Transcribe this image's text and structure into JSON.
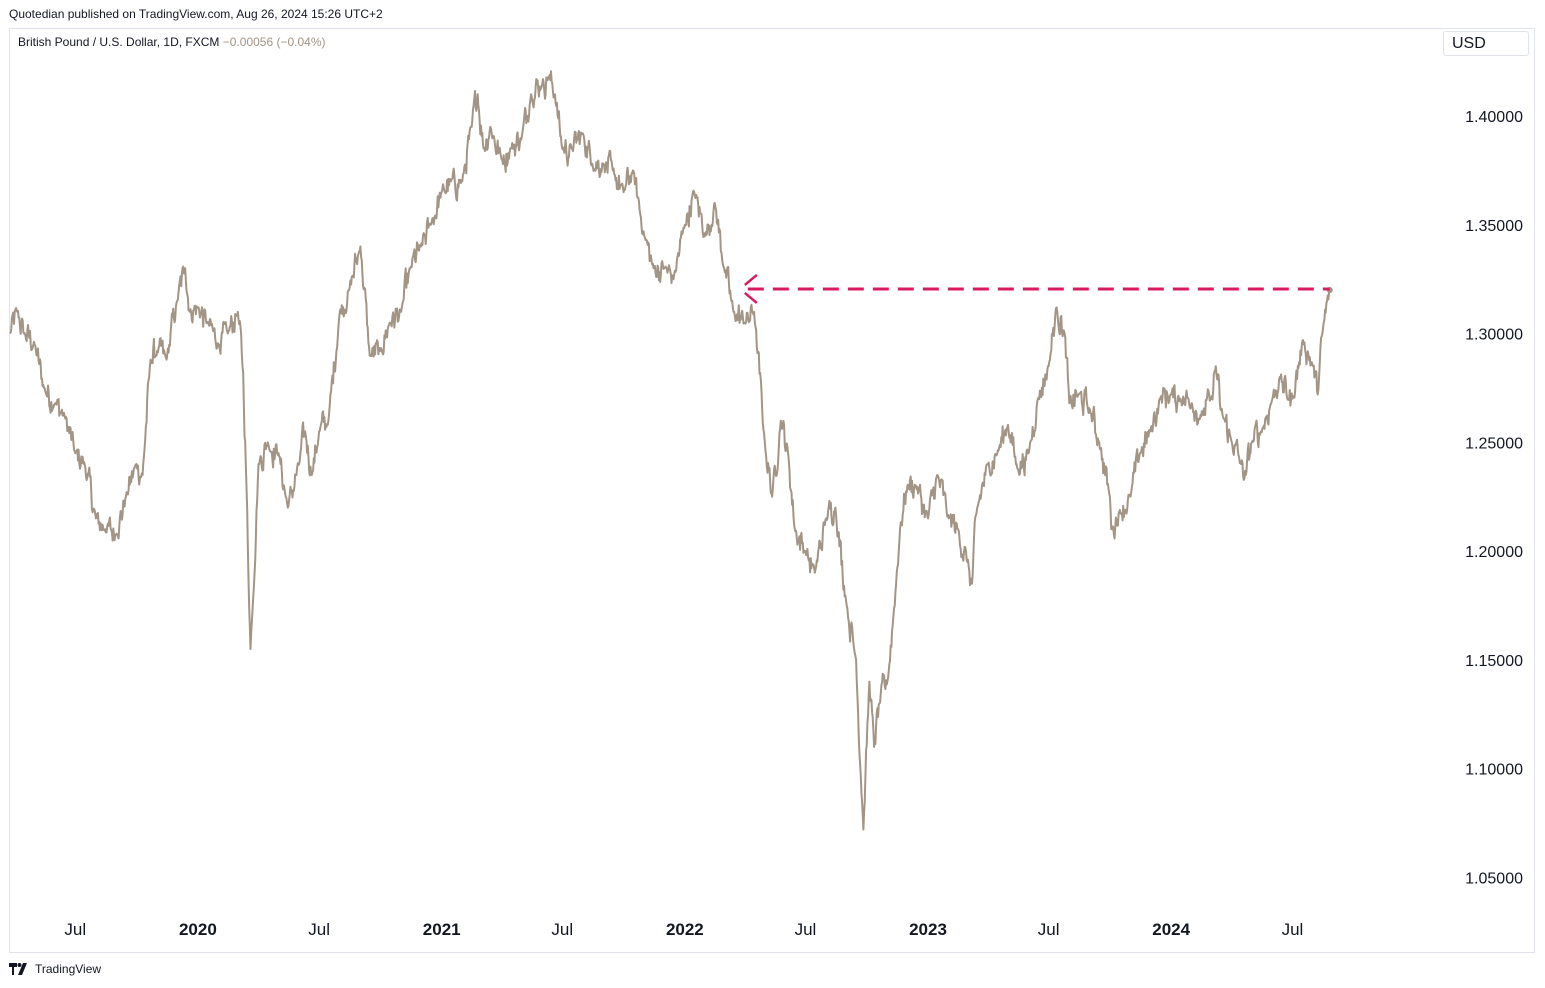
{
  "header": {
    "published": "Quotedian published on TradingView.com, Aug 26, 2024 15:26 UTC+2"
  },
  "symbol": {
    "name": "British Pound / U.S. Dollar, 1D, FXCM",
    "change": "−0.00056 (−0.04%)"
  },
  "currency": "USD",
  "footer": {
    "brand": "TradingView"
  },
  "colors": {
    "line": "#a39585",
    "marker": "#d81b60",
    "text": "#131722",
    "border": "#e0e3eb"
  },
  "chart_data": {
    "type": "line",
    "title": "",
    "xlabel": "",
    "ylabel": "",
    "ylim": [
      1.035,
      1.44
    ],
    "xlim": [
      "2019-03-25",
      "2025-01-31"
    ],
    "x_ticks": [
      {
        "label": "Jul",
        "date": "2019-07-01",
        "bold": false
      },
      {
        "label": "2020",
        "date": "2020-01-01",
        "bold": true
      },
      {
        "label": "Jul",
        "date": "2020-07-01",
        "bold": false
      },
      {
        "label": "2021",
        "date": "2021-01-01",
        "bold": true
      },
      {
        "label": "Jul",
        "date": "2021-07-01",
        "bold": false
      },
      {
        "label": "2022",
        "date": "2022-01-01",
        "bold": true
      },
      {
        "label": "Jul",
        "date": "2022-07-01",
        "bold": false
      },
      {
        "label": "2023",
        "date": "2023-01-01",
        "bold": true
      },
      {
        "label": "Jul",
        "date": "2023-07-01",
        "bold": false
      },
      {
        "label": "2024",
        "date": "2024-01-01",
        "bold": true
      },
      {
        "label": "Jul",
        "date": "2024-07-01",
        "bold": false
      }
    ],
    "y_ticks": [
      "1.05000",
      "1.10000",
      "1.15000",
      "1.20000",
      "1.25000",
      "1.30000",
      "1.35000",
      "1.40000"
    ],
    "series": [
      {
        "x": [
          "2019-03-25",
          "2019-04-05",
          "2019-04-15",
          "2019-05-01",
          "2019-05-15",
          "2019-06-01",
          "2019-06-15",
          "2019-07-01",
          "2019-07-15",
          "2019-08-01",
          "2019-08-15",
          "2019-09-01",
          "2019-09-15",
          "2019-10-01",
          "2019-10-10",
          "2019-10-22",
          "2019-11-01",
          "2019-11-15",
          "2019-12-01",
          "2019-12-13",
          "2019-12-20",
          "2020-01-01",
          "2020-01-15",
          "2020-02-01",
          "2020-02-15",
          "2020-03-01",
          "2020-03-09",
          "2020-03-13",
          "2020-03-20",
          "2020-04-01",
          "2020-04-15",
          "2020-05-01",
          "2020-05-15",
          "2020-06-01",
          "2020-06-10",
          "2020-06-20",
          "2020-07-01",
          "2020-07-15",
          "2020-08-01",
          "2020-08-15",
          "2020-09-01",
          "2020-09-15",
          "2020-10-01",
          "2020-10-15",
          "2020-11-01",
          "2020-11-15",
          "2020-12-01",
          "2020-12-15",
          "2021-01-01",
          "2021-01-15",
          "2021-02-01",
          "2021-02-15",
          "2021-02-24",
          "2021-03-05",
          "2021-03-15",
          "2021-04-01",
          "2021-04-15",
          "2021-05-01",
          "2021-05-15",
          "2021-06-01",
          "2021-06-10",
          "2021-06-20",
          "2021-07-01",
          "2021-07-15",
          "2021-08-01",
          "2021-08-15",
          "2021-09-01",
          "2021-09-15",
          "2021-10-01",
          "2021-10-15",
          "2021-11-01",
          "2021-11-15",
          "2021-12-01",
          "2021-12-15",
          "2022-01-01",
          "2022-01-15",
          "2022-02-01",
          "2022-02-15",
          "2022-03-01",
          "2022-03-15",
          "2022-04-01",
          "2022-04-15",
          "2022-05-01",
          "2022-05-12",
          "2022-05-25",
          "2022-06-05",
          "2022-06-15",
          "2022-07-01",
          "2022-07-15",
          "2022-08-01",
          "2022-08-15",
          "2022-09-01",
          "2022-09-15",
          "2022-09-26",
          "2022-10-05",
          "2022-10-12",
          "2022-10-20",
          "2022-11-01",
          "2022-11-10",
          "2022-11-20",
          "2022-12-01",
          "2022-12-14",
          "2023-01-01",
          "2023-01-15",
          "2023-02-01",
          "2023-02-15",
          "2023-03-01",
          "2023-03-08",
          "2023-03-15",
          "2023-04-01",
          "2023-04-15",
          "2023-05-01",
          "2023-05-15",
          "2023-06-01",
          "2023-06-15",
          "2023-07-01",
          "2023-07-13",
          "2023-07-25",
          "2023-08-01",
          "2023-08-15",
          "2023-09-01",
          "2023-09-15",
          "2023-10-01",
          "2023-10-04",
          "2023-10-15",
          "2023-11-01",
          "2023-11-15",
          "2023-12-01",
          "2023-12-15",
          "2024-01-01",
          "2024-01-15",
          "2024-02-01",
          "2024-02-15",
          "2024-03-01",
          "2024-03-08",
          "2024-03-15",
          "2024-04-01",
          "2024-04-15",
          "2024-04-22",
          "2024-05-01",
          "2024-05-15",
          "2024-06-01",
          "2024-06-12",
          "2024-06-25",
          "2024-07-01",
          "2024-07-17",
          "2024-08-01",
          "2024-08-08",
          "2024-08-15",
          "2024-08-26"
        ],
        "y": [
          1.3,
          1.31,
          1.3,
          1.295,
          1.275,
          1.268,
          1.262,
          1.245,
          1.24,
          1.215,
          1.21,
          1.208,
          1.225,
          1.24,
          1.235,
          1.288,
          1.292,
          1.288,
          1.315,
          1.33,
          1.31,
          1.312,
          1.305,
          1.295,
          1.3,
          1.31,
          1.282,
          1.24,
          1.155,
          1.24,
          1.25,
          1.245,
          1.22,
          1.24,
          1.255,
          1.235,
          1.255,
          1.26,
          1.31,
          1.32,
          1.34,
          1.29,
          1.292,
          1.305,
          1.31,
          1.33,
          1.34,
          1.35,
          1.365,
          1.37,
          1.37,
          1.395,
          1.41,
          1.385,
          1.395,
          1.38,
          1.385,
          1.39,
          1.41,
          1.415,
          1.418,
          1.41,
          1.385,
          1.385,
          1.392,
          1.378,
          1.378,
          1.375,
          1.365,
          1.375,
          1.345,
          1.33,
          1.33,
          1.325,
          1.35,
          1.365,
          1.345,
          1.36,
          1.33,
          1.31,
          1.305,
          1.31,
          1.25,
          1.225,
          1.26,
          1.245,
          1.21,
          1.2,
          1.19,
          1.215,
          1.22,
          1.175,
          1.15,
          1.072,
          1.14,
          1.11,
          1.13,
          1.14,
          1.17,
          1.21,
          1.23,
          1.23,
          1.215,
          1.235,
          1.215,
          1.21,
          1.195,
          1.185,
          1.218,
          1.24,
          1.245,
          1.258,
          1.238,
          1.245,
          1.27,
          1.285,
          1.312,
          1.3,
          1.268,
          1.272,
          1.265,
          1.25,
          1.225,
          1.21,
          1.218,
          1.225,
          1.245,
          1.255,
          1.27,
          1.272,
          1.27,
          1.268,
          1.262,
          1.27,
          1.285,
          1.265,
          1.25,
          1.24,
          1.235,
          1.25,
          1.255,
          1.27,
          1.28,
          1.27,
          1.27,
          1.297,
          1.285,
          1.272,
          1.3,
          1.32
        ]
      }
    ],
    "annotations": [
      {
        "type": "horizontal-dashed-line",
        "y": 1.3205,
        "from": "2022-04-01",
        "to": "2024-08-26",
        "color": "#d81b60"
      }
    ]
  }
}
